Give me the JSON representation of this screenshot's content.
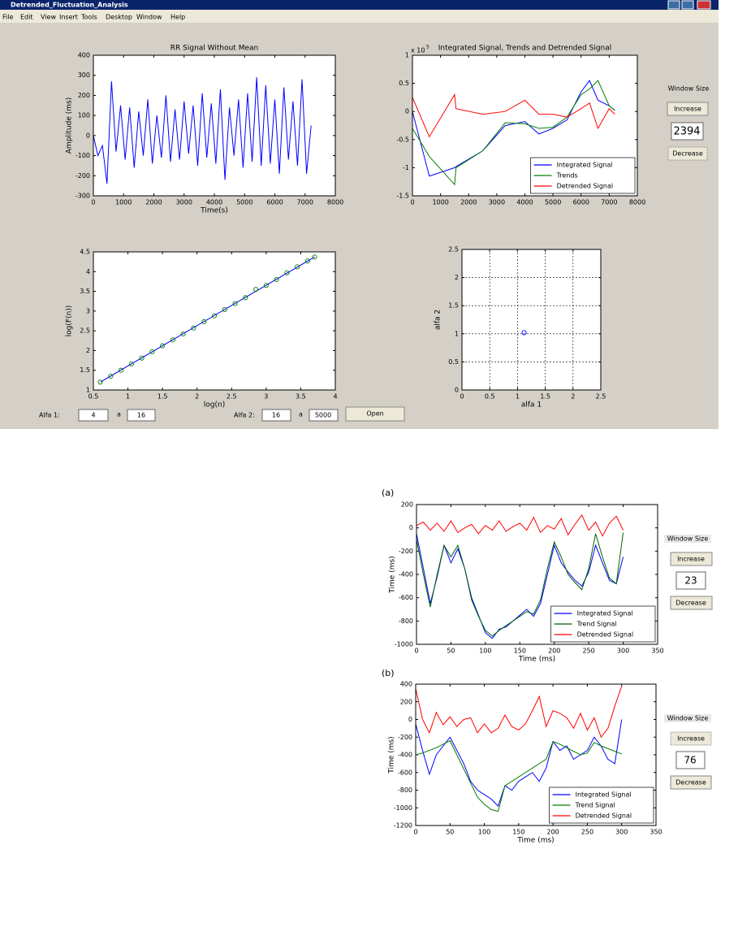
{
  "window": {
    "title": "Detrended_Fluctuation_Analysis",
    "menu": [
      "File",
      "Edit",
      "View",
      "Insert",
      "Tools",
      "Desktop",
      "Window",
      "Help"
    ]
  },
  "window_size_panel": {
    "label": "Window Size",
    "increase": "Increase",
    "value": 2394,
    "decrease": "Decrease"
  },
  "alfa_controls": {
    "alfa1_label": "Alfa 1:",
    "alfa1_from": 4,
    "alfa1_sep": "a",
    "alfa1_to": 16,
    "alfa2_label": "Alfa 2:",
    "alfa2_from": 16,
    "alfa2_sep": "a",
    "alfa2_to": 5000,
    "open": "Open"
  },
  "figure_a": {
    "label": "(a)",
    "panel": {
      "label": "Window Size",
      "increase": "Increase",
      "value": 23,
      "decrease": "Decrease"
    }
  },
  "figure_b": {
    "label": "(b)",
    "panel": {
      "label": "Window Size",
      "increase": "Increase",
      "value": 76,
      "decrease": "Decrease"
    }
  },
  "chart_data": [
    {
      "type": "line",
      "title": "RR Signal Without Mean",
      "x_label": "Time(s)",
      "y_label": "Amplitude (ms)",
      "xlim": [
        0,
        8000
      ],
      "xticks": [
        0,
        1000,
        2000,
        3000,
        4000,
        5000,
        6000,
        7000,
        8000
      ],
      "ylim": [
        -300,
        400
      ],
      "yticks": [
        -300,
        -200,
        -100,
        0,
        100,
        200,
        300,
        400
      ],
      "grid": false,
      "x": [
        0,
        150,
        300,
        450,
        600,
        750,
        900,
        1050,
        1200,
        1350,
        1500,
        1650,
        1800,
        1950,
        2100,
        2250,
        2400,
        2550,
        2700,
        2850,
        3000,
        3150,
        3300,
        3450,
        3600,
        3750,
        3900,
        4050,
        4200,
        4350,
        4500,
        4650,
        4800,
        4950,
        5100,
        5250,
        5400,
        5550,
        5700,
        5850,
        6000,
        6150,
        6300,
        6450,
        6600,
        6750,
        6900,
        7050,
        7200
      ],
      "series": [
        {
          "color": "#0000ff",
          "style": "line",
          "values": [
            0,
            -100,
            -50,
            -240,
            270,
            -80,
            150,
            -120,
            140,
            -160,
            120,
            -100,
            180,
            -140,
            100,
            -110,
            200,
            -130,
            130,
            -120,
            170,
            -90,
            150,
            -150,
            210,
            -110,
            160,
            -140,
            230,
            -220,
            140,
            -100,
            180,
            -160,
            210,
            -130,
            290,
            -150,
            250,
            -140,
            180,
            -190,
            240,
            -120,
            170,
            -150,
            280,
            -190,
            50
          ]
        }
      ]
    },
    {
      "type": "line",
      "title": "Integrated Signal, Trends and Detrended Signal",
      "y_multiplier": {
        "base": "x 10",
        "exponent": "5"
      },
      "xlim": [
        0,
        8000
      ],
      "xticks": [
        0,
        1000,
        2000,
        3000,
        4000,
        5000,
        6000,
        7000,
        8000
      ],
      "ylim": [
        -1.5,
        1
      ],
      "yticks": [
        -1.5,
        -1,
        -0.5,
        0,
        0.5,
        1
      ],
      "grid": false,
      "legend": "lower right",
      "x": [
        0,
        600,
        1500,
        1550,
        2500,
        3300,
        4000,
        4500,
        5000,
        5500,
        6000,
        6300,
        6600,
        7000,
        7200
      ],
      "series": [
        {
          "name": "Integrated Signal",
          "color": "#0000ff",
          "style": "line",
          "values": [
            0,
            -1.15,
            -1,
            -0.98,
            -0.7,
            -0.25,
            -0.18,
            -0.4,
            -0.3,
            -0.15,
            0.35,
            0.55,
            0.2,
            0.1,
            0.02
          ]
        },
        {
          "name": "Trends",
          "color": "#008000",
          "style": "line",
          "values": [
            -0.3,
            -0.8,
            -1.3,
            -1,
            -0.7,
            -0.2,
            -0.22,
            -0.3,
            -0.28,
            -0.1,
            0.3,
            0.4,
            0.55,
            0.1,
            0.02
          ]
        },
        {
          "name": "Detrended Signal",
          "color": "#ff0000",
          "style": "line",
          "values": [
            0.25,
            -0.45,
            0.3,
            0.05,
            -0.05,
            0,
            0.2,
            -0.05,
            -0.05,
            -0.1,
            0.05,
            0.15,
            -0.3,
            0.05,
            -0.05
          ]
        }
      ]
    },
    {
      "type": "scatter",
      "x_label": "log(n)",
      "y_label": "log(F(n))",
      "xlim": [
        0.5,
        4
      ],
      "xticks": [
        0.5,
        1,
        1.5,
        2,
        2.5,
        3,
        3.5,
        4
      ],
      "ylim": [
        1,
        4.5
      ],
      "yticks": [
        1,
        1.5,
        2,
        2.5,
        3,
        3.5,
        4,
        4.5
      ],
      "grid": false,
      "x": [
        0.6,
        0.75,
        0.9,
        1.05,
        1.2,
        1.35,
        1.5,
        1.65,
        1.8,
        1.95,
        2.1,
        2.25,
        2.4,
        2.55,
        2.7,
        2.85,
        3,
        3.15,
        3.3,
        3.45,
        3.6,
        3.7
      ],
      "series": [
        {
          "color": "#0000ff",
          "style": "line",
          "x": [
            0.6,
            3.7
          ],
          "values": [
            1.2,
            4.37
          ]
        },
        {
          "color": "#008000",
          "style": "circle",
          "values": [
            1.2,
            1.35,
            1.5,
            1.66,
            1.81,
            1.97,
            2.12,
            2.27,
            2.42,
            2.57,
            2.73,
            2.88,
            3.04,
            3.19,
            3.34,
            3.55,
            3.65,
            3.8,
            3.97,
            4.12,
            4.27,
            4.37
          ]
        }
      ]
    },
    {
      "type": "scatter",
      "x_label": "alfa 1",
      "y_label": "alfa 2",
      "xlim": [
        0,
        2.5
      ],
      "xticks": [
        0,
        0.5,
        1,
        1.5,
        2,
        2.5
      ],
      "ylim": [
        0,
        2.5
      ],
      "yticks": [
        0,
        0.5,
        1,
        1.5,
        2,
        2.5
      ],
      "grid": true,
      "x": [
        1.12
      ],
      "series": [
        {
          "color": "#0000ff",
          "style": "circle",
          "values": [
            1.02
          ]
        }
      ]
    },
    {
      "type": "line",
      "x_label": "Time (ms)",
      "y_label": "Time (ms)",
      "xlim": [
        0,
        350
      ],
      "xticks": [
        0,
        50,
        100,
        150,
        200,
        250,
        300,
        350
      ],
      "ylim": [
        -1000,
        200
      ],
      "yticks": [
        -1000,
        -800,
        -600,
        -400,
        -200,
        0,
        200
      ],
      "grid": false,
      "legend": "lower right",
      "x": [
        0,
        10,
        20,
        30,
        40,
        50,
        60,
        70,
        80,
        90,
        100,
        110,
        120,
        130,
        140,
        150,
        160,
        170,
        180,
        190,
        200,
        210,
        220,
        230,
        240,
        250,
        260,
        270,
        280,
        290,
        300
      ],
      "series": [
        {
          "name": "Integrated Signal",
          "color": "#0000ff",
          "style": "line",
          "values": [
            -50,
            -350,
            -650,
            -420,
            -150,
            -300,
            -180,
            -350,
            -600,
            -750,
            -900,
            -950,
            -870,
            -850,
            -800,
            -750,
            -700,
            -760,
            -650,
            -400,
            -150,
            -300,
            -380,
            -450,
            -500,
            -380,
            -150,
            -300,
            -450,
            -480,
            -250
          ]
        },
        {
          "name": "Trend Signal",
          "color": "#006400",
          "style": "line",
          "values": [
            -100,
            -400,
            -680,
            -400,
            -150,
            -250,
            -150,
            -350,
            -620,
            -760,
            -880,
            -930,
            -880,
            -840,
            -800,
            -760,
            -720,
            -740,
            -620,
            -350,
            -120,
            -250,
            -400,
            -470,
            -530,
            -350,
            -50,
            -250,
            -430,
            -480,
            -40
          ]
        },
        {
          "name": "Detrended Signal",
          "color": "#ff0000",
          "style": "line",
          "values": [
            20,
            50,
            -20,
            40,
            -30,
            60,
            -40,
            0,
            30,
            -50,
            20,
            -20,
            60,
            -30,
            10,
            40,
            -20,
            90,
            -40,
            20,
            -10,
            80,
            -60,
            30,
            110,
            -20,
            50,
            -70,
            40,
            100,
            -20
          ]
        }
      ]
    },
    {
      "type": "line",
      "x_label": "Time (ms)",
      "y_label": "Time (ms)",
      "xlim": [
        0,
        350
      ],
      "xticks": [
        0,
        50,
        100,
        150,
        200,
        250,
        300,
        350
      ],
      "ylim": [
        -1200,
        400
      ],
      "yticks": [
        -1200,
        -1000,
        -800,
        -600,
        -400,
        -200,
        0,
        200,
        400
      ],
      "grid": false,
      "legend": "lower right",
      "x": [
        0,
        10,
        20,
        30,
        40,
        50,
        60,
        70,
        80,
        90,
        100,
        110,
        120,
        130,
        140,
        150,
        160,
        170,
        180,
        190,
        200,
        210,
        220,
        230,
        240,
        250,
        260,
        270,
        280,
        290,
        300
      ],
      "series": [
        {
          "name": "Integrated Signal",
          "color": "#0000ff",
          "style": "line",
          "values": [
            -50,
            -350,
            -620,
            -400,
            -300,
            -200,
            -350,
            -500,
            -700,
            -800,
            -850,
            -900,
            -980,
            -750,
            -800,
            -700,
            -650,
            -600,
            -700,
            -550,
            -250,
            -350,
            -300,
            -450,
            -400,
            -350,
            -200,
            -300,
            -450,
            -500,
            0
          ]
        },
        {
          "name": "Trend Signal",
          "color": "#008000",
          "style": "line",
          "values": [
            -400,
            -380,
            -350,
            -320,
            -280,
            -240,
            -400,
            -560,
            -720,
            -880,
            -960,
            -1020,
            -1040,
            -750,
            -700,
            -650,
            -600,
            -550,
            -500,
            -450,
            -250,
            -280,
            -320,
            -360,
            -400,
            -380,
            -260,
            -300,
            -330,
            -360,
            -390
          ]
        },
        {
          "name": "Detrended Signal",
          "color": "#ff0000",
          "style": "line",
          "values": [
            350,
            0,
            -150,
            80,
            -60,
            30,
            -80,
            0,
            20,
            -150,
            -50,
            -150,
            -100,
            50,
            -80,
            -120,
            -50,
            100,
            260,
            -80,
            100,
            70,
            20,
            -100,
            70,
            -120,
            20,
            -200,
            -100,
            150,
            380
          ]
        }
      ]
    }
  ]
}
